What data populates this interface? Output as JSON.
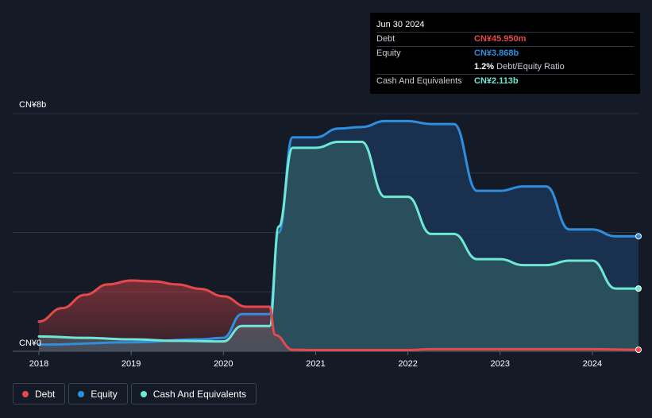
{
  "tooltip": {
    "date": "Jun 30 2024",
    "debt_label": "Debt",
    "debt_value": "CN¥45.950m",
    "equity_label": "Equity",
    "equity_value": "CN¥3.868b",
    "ratio_value": "1.2%",
    "ratio_label": "Debt/Equity Ratio",
    "cash_label": "Cash And Equivalents",
    "cash_value": "CN¥2.113b"
  },
  "legend": [
    {
      "label": "Debt",
      "color": "#e5484d"
    },
    {
      "label": "Equity",
      "color": "#2f8fde"
    },
    {
      "label": "Cash And Equivalents",
      "color": "#6ee7d5"
    }
  ],
  "chart_data": {
    "type": "area",
    "ylim": [
      0,
      8
    ],
    "y_top_label": "CN¥8b",
    "y_bottom_label": "CN¥0",
    "x_ticks": [
      "2018",
      "2019",
      "2020",
      "2021",
      "2022",
      "2023",
      "2024"
    ],
    "x_range": [
      2018,
      2024.5
    ],
    "series": [
      {
        "name": "Debt",
        "color": "#e5484d",
        "x": [
          2018.0,
          2018.25,
          2018.5,
          2018.75,
          2019.0,
          2019.25,
          2019.5,
          2019.75,
          2020.0,
          2020.25,
          2020.5,
          2020.56,
          2020.75,
          2021.0,
          2021.5,
          2022.0,
          2022.25,
          2022.5,
          2023.0,
          2023.5,
          2024.0,
          2024.5
        ],
        "values": [
          1.0,
          1.45,
          1.9,
          2.25,
          2.38,
          2.35,
          2.25,
          2.1,
          1.85,
          1.5,
          1.5,
          0.55,
          0.05,
          0.04,
          0.04,
          0.04,
          0.07,
          0.07,
          0.07,
          0.07,
          0.07,
          0.05
        ]
      },
      {
        "name": "Equity",
        "color": "#2f8fde",
        "x": [
          2018.0,
          2019.0,
          2019.75,
          2020.0,
          2020.2,
          2020.5,
          2020.6,
          2020.75,
          2021.0,
          2021.25,
          2021.5,
          2021.75,
          2022.0,
          2022.25,
          2022.5,
          2022.75,
          2023.0,
          2023.25,
          2023.5,
          2023.75,
          2024.0,
          2024.25,
          2024.5
        ],
        "values": [
          0.22,
          0.3,
          0.4,
          0.45,
          1.25,
          1.25,
          4.0,
          7.2,
          7.2,
          7.5,
          7.55,
          7.75,
          7.75,
          7.65,
          7.65,
          5.4,
          5.4,
          5.55,
          5.55,
          4.1,
          4.1,
          3.87,
          3.87
        ]
      },
      {
        "name": "Cash And Equivalents",
        "color": "#6ee7d5",
        "x": [
          2018.0,
          2018.5,
          2019.0,
          2019.5,
          2020.0,
          2020.2,
          2020.5,
          2020.6,
          2020.75,
          2021.0,
          2021.25,
          2021.5,
          2021.75,
          2022.0,
          2022.25,
          2022.5,
          2022.75,
          2023.0,
          2023.25,
          2023.5,
          2023.75,
          2024.0,
          2024.25,
          2024.5
        ],
        "values": [
          0.5,
          0.45,
          0.4,
          0.35,
          0.33,
          0.85,
          0.85,
          4.2,
          6.85,
          6.85,
          7.05,
          7.05,
          5.2,
          5.2,
          3.95,
          3.95,
          3.1,
          3.1,
          2.9,
          2.9,
          3.05,
          3.05,
          2.11,
          2.11
        ]
      }
    ]
  }
}
